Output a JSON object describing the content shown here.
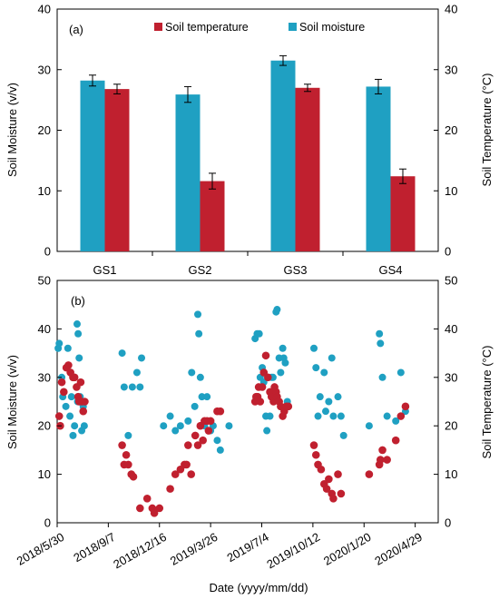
{
  "colors": {
    "temperature": "#c0202f",
    "moisture": "#1fa0c2",
    "axis": "#000000"
  },
  "chart_data": [
    {
      "type": "bar",
      "panel_label": "(a)",
      "categories": [
        "GS1",
        "GS2",
        "GS3",
        "GS4"
      ],
      "series": [
        {
          "name": "Soil temperature",
          "axis": "right",
          "values": [
            26.8,
            11.6,
            27.0,
            12.4
          ],
          "errors": [
            0.8,
            1.3,
            0.6,
            1.2
          ]
        },
        {
          "name": "Soil moisture",
          "axis": "left",
          "values": [
            28.2,
            25.9,
            31.5,
            27.2
          ],
          "errors": [
            0.9,
            1.3,
            0.8,
            1.2
          ]
        }
      ],
      "ylabel": "Soil Moisture (v/v)",
      "y2label": "Soil Temperature (°C)",
      "ylim": [
        0,
        40
      ],
      "y2lim": [
        0,
        40
      ],
      "yticks": [
        "0",
        "10",
        "20",
        "30",
        "40"
      ],
      "y2ticks": [
        "0",
        "10",
        "20",
        "30",
        "40"
      ],
      "legend": "top"
    },
    {
      "type": "scatter",
      "panel_label": "(b)",
      "xlabel": "Date (yyyy/mm/dd)",
      "ylabel": "Soil Moisture (v/v)",
      "y2label": "Soil Temperature (°C)",
      "ylim": [
        0,
        50
      ],
      "y2lim": [
        0,
        50
      ],
      "yticks": [
        "0",
        "10",
        "20",
        "30",
        "40",
        "50"
      ],
      "y2ticks": [
        "0",
        "10",
        "20",
        "30",
        "40",
        "50"
      ],
      "xticks": [
        "2018/5/30",
        "2018/9/7",
        "2018/12/16",
        "2019/3/26",
        "2019/7/4",
        "2019/10/12",
        "2020/1/20",
        "2020/4/29"
      ],
      "xrange": [
        "2018/5/30",
        "2020/6/13"
      ],
      "series": [
        {
          "name": "Soil moisture",
          "axis": "left",
          "points": [
            [
              "2018/6/1",
              36
            ],
            [
              "2018/6/3",
              37
            ],
            [
              "2018/6/8",
              30
            ],
            [
              "2018/6/10",
              26
            ],
            [
              "2018/6/16",
              24
            ],
            [
              "2018/6/20",
              36
            ],
            [
              "2018/6/24",
              22
            ],
            [
              "2018/6/27",
              26
            ],
            [
              "2018/6/30",
              18
            ],
            [
              "2018/7/3",
              20
            ],
            [
              "2018/7/8",
              41
            ],
            [
              "2018/7/9",
              25
            ],
            [
              "2018/7/10",
              39
            ],
            [
              "2018/7/12",
              34
            ],
            [
              "2018/7/14",
              26
            ],
            [
              "2018/7/17",
              19
            ],
            [
              "2018/7/20",
              24
            ],
            [
              "2018/7/22",
              20
            ],
            [
              "2018/10/4",
              35
            ],
            [
              "2018/10/8",
              28
            ],
            [
              "2018/10/16",
              18
            ],
            [
              "2018/10/24",
              28
            ],
            [
              "2018/11/2",
              31
            ],
            [
              "2018/11/8",
              28
            ],
            [
              "2018/11/11",
              34
            ],
            [
              "2018/12/24",
              20
            ],
            [
              "2019/1/6",
              22
            ],
            [
              "2019/1/16",
              19
            ],
            [
              "2019/1/26",
              20
            ],
            [
              "2019/2/10",
              21
            ],
            [
              "2019/2/17",
              31
            ],
            [
              "2019/2/23",
              24
            ],
            [
              "2019/3/1",
              43
            ],
            [
              "2019/3/3",
              39
            ],
            [
              "2019/3/6",
              30
            ],
            [
              "2019/3/9",
              26
            ],
            [
              "2019/3/14",
              20
            ],
            [
              "2019/3/19",
              26
            ],
            [
              "2019/3/26",
              19
            ],
            [
              "2019/3/31",
              20
            ],
            [
              "2019/4/8",
              17
            ],
            [
              "2019/4/14",
              15
            ],
            [
              "2019/5/1",
              20
            ],
            [
              "2019/6/21",
              38
            ],
            [
              "2019/6/25",
              39
            ],
            [
              "2019/6/29",
              39
            ],
            [
              "2019/7/1",
              30
            ],
            [
              "2019/7/5",
              32
            ],
            [
              "2019/7/8",
              29
            ],
            [
              "2019/7/12",
              22
            ],
            [
              "2019/7/14",
              19
            ],
            [
              "2019/7/20",
              22
            ],
            [
              "2019/7/23",
              30
            ],
            [
              "2019/7/26",
              30
            ],
            [
              "2019/7/29",
              27
            ],
            [
              "2019/8/1",
              43.5
            ],
            [
              "2019/8/3",
              44
            ],
            [
              "2019/8/7",
              34
            ],
            [
              "2019/8/10",
              31
            ],
            [
              "2019/8/14",
              36
            ],
            [
              "2019/8/16",
              34
            ],
            [
              "2019/8/19",
              33
            ],
            [
              "2019/8/23",
              25
            ],
            [
              "2019/10/14",
              36
            ],
            [
              "2019/10/18",
              32
            ],
            [
              "2019/10/22",
              22
            ],
            [
              "2019/10/26",
              26
            ],
            [
              "2019/11/3",
              31
            ],
            [
              "2019/11/6",
              23
            ],
            [
              "2019/11/12",
              25
            ],
            [
              "2019/11/18",
              34
            ],
            [
              "2019/11/21",
              22
            ],
            [
              "2019/11/30",
              26
            ],
            [
              "2019/12/6",
              22
            ],
            [
              "2019/12/11",
              18
            ],
            [
              "2020/1/30",
              20
            ],
            [
              "2020/2/19",
              39
            ],
            [
              "2020/2/21",
              37
            ],
            [
              "2020/2/25",
              30
            ],
            [
              "2020/3/5",
              22
            ],
            [
              "2020/3/22",
              21
            ],
            [
              "2020/4/1",
              31
            ],
            [
              "2020/4/10",
              23
            ]
          ]
        },
        {
          "name": "Soil temperature",
          "axis": "right",
          "points": [
            [
              "2018/6/3",
              22
            ],
            [
              "2018/6/5",
              20
            ],
            [
              "2018/6/8",
              29
            ],
            [
              "2018/6/12",
              27
            ],
            [
              "2018/6/17",
              32
            ],
            [
              "2018/6/21",
              32.5
            ],
            [
              "2018/6/25",
              31
            ],
            [
              "2018/6/30",
              30
            ],
            [
              "2018/7/3",
              30
            ],
            [
              "2018/7/7",
              28
            ],
            [
              "2018/7/10",
              26
            ],
            [
              "2018/7/12",
              25
            ],
            [
              "2018/7/15",
              29
            ],
            [
              "2018/7/17",
              25
            ],
            [
              "2018/7/20",
              23
            ],
            [
              "2018/7/23",
              25
            ],
            [
              "2018/10/4",
              16
            ],
            [
              "2018/10/8",
              12
            ],
            [
              "2018/10/12",
              14
            ],
            [
              "2018/10/16",
              12
            ],
            [
              "2018/10/22",
              10
            ],
            [
              "2018/10/26",
              9.5
            ],
            [
              "2018/11/8",
              3
            ],
            [
              "2018/11/22",
              5
            ],
            [
              "2018/12/2",
              3
            ],
            [
              "2018/12/6",
              2
            ],
            [
              "2018/12/16",
              3
            ],
            [
              "2019/1/6",
              7
            ],
            [
              "2019/1/16",
              10
            ],
            [
              "2019/1/26",
              11
            ],
            [
              "2019/2/3",
              12
            ],
            [
              "2019/2/7",
              12
            ],
            [
              "2019/2/10",
              16
            ],
            [
              "2019/2/16",
              10
            ],
            [
              "2019/2/24",
              18
            ],
            [
              "2019/3/1",
              16
            ],
            [
              "2019/3/6",
              20
            ],
            [
              "2019/3/11",
              17
            ],
            [
              "2019/3/14",
              21
            ],
            [
              "2019/3/19",
              21
            ],
            [
              "2019/3/22",
              19
            ],
            [
              "2019/3/26",
              21
            ],
            [
              "2019/4/8",
              23
            ],
            [
              "2019/4/14",
              23
            ],
            [
              "2019/6/21",
              25
            ],
            [
              "2019/6/23",
              26
            ],
            [
              "2019/6/26",
              26
            ],
            [
              "2019/6/28",
              28
            ],
            [
              "2019/7/1",
              25
            ],
            [
              "2019/7/5",
              28
            ],
            [
              "2019/7/8",
              31
            ],
            [
              "2019/7/12",
              34.5
            ],
            [
              "2019/7/16",
              30
            ],
            [
              "2019/7/20",
              27
            ],
            [
              "2019/7/23",
              26
            ],
            [
              "2019/7/27",
              25
            ],
            [
              "2019/7/29",
              28
            ],
            [
              "2019/8/1",
              27
            ],
            [
              "2019/8/3",
              26
            ],
            [
              "2019/8/7",
              25
            ],
            [
              "2019/8/10",
              24
            ],
            [
              "2019/8/14",
              22
            ],
            [
              "2019/8/17",
              23
            ],
            [
              "2019/8/21",
              24
            ],
            [
              "2019/8/25",
              24
            ],
            [
              "2019/10/14",
              16
            ],
            [
              "2019/10/18",
              14
            ],
            [
              "2019/10/22",
              12
            ],
            [
              "2019/10/28",
              11
            ],
            [
              "2019/11/3",
              8
            ],
            [
              "2019/11/8",
              7
            ],
            [
              "2019/11/12",
              9
            ],
            [
              "2019/11/18",
              6
            ],
            [
              "2019/11/21",
              5
            ],
            [
              "2019/11/30",
              10
            ],
            [
              "2019/12/6",
              6
            ],
            [
              "2020/1/30",
              10
            ],
            [
              "2020/2/19",
              12
            ],
            [
              "2020/2/21",
              13
            ],
            [
              "2020/2/25",
              15
            ],
            [
              "2020/3/5",
              13
            ],
            [
              "2020/3/22",
              17
            ],
            [
              "2020/4/1",
              22
            ],
            [
              "2020/4/10",
              24
            ]
          ]
        }
      ]
    }
  ]
}
